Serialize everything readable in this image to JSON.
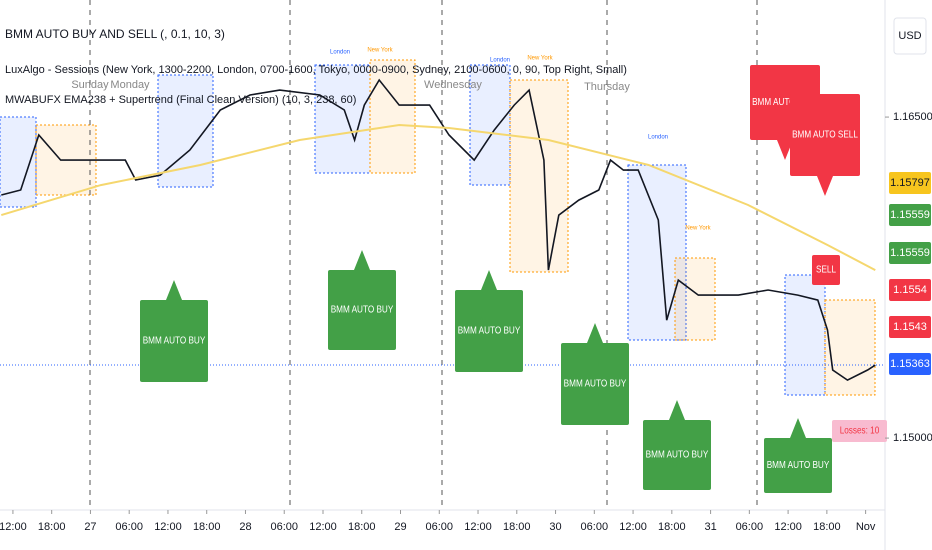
{
  "header": {
    "lines": [
      "BMM AUTO BUY AND SELL (, 0.1, 10, 3)",
      "LuxAlgo - Sessions (New York, 1300-2200, London, 0700-1600, Tokyo, 0000-0900, Sydney, 2100-0600, 0, 90, Top Right, Small)",
      "MWABUFX EMA238 + Supertrend (Final Clean Version) (10, 3, 238, 60)"
    ],
    "currency": "USD"
  },
  "chart_data": {
    "type": "line",
    "series": [
      {
        "color": "#131722",
        "x": [
          -1.8,
          1.2,
          4.0,
          7.4,
          12.0,
          17.4,
          19.0,
          22.8,
          27.4,
          32.1,
          36.7,
          41.3,
          47.5,
          51.3,
          52.9,
          54.4,
          56.7,
          59.8,
          64.5,
          67.5,
          71.4,
          74.5,
          77.6,
          79.9,
          82.2,
          82.9,
          84.5,
          87.6,
          90.7,
          92.5,
          94.5,
          96.8,
          99.9,
          101.2,
          103.0,
          106.1,
          112.3,
          116.9,
          121.5,
          124.6,
          126.1,
          126.9,
          129.2,
          132.3,
          133.5
        ],
        "values": [
          1.16136,
          1.16159,
          1.16416,
          1.16299,
          1.16299,
          1.16299,
          1.16206,
          1.16229,
          1.16346,
          1.16533,
          1.16603,
          1.16626,
          1.16603,
          1.16533,
          1.16393,
          1.16556,
          1.16673,
          1.16556,
          1.16556,
          1.16416,
          1.16299,
          1.16439,
          1.16556,
          1.16626,
          1.16299,
          1.15785,
          1.16042,
          1.16112,
          1.16159,
          1.16299,
          1.16252,
          1.16252,
          1.16019,
          1.15551,
          1.15738,
          1.15668,
          1.15668,
          1.15692,
          1.15668,
          1.15645,
          1.15505,
          1.15318,
          1.15271,
          1.15318,
          1.15341
        ]
      },
      {
        "color": "#f5d76e",
        "x": [
          -1.8,
          13.6,
          29.0,
          44.4,
          59.8,
          67.5,
          82.9,
          98.4,
          113.8,
          126.1,
          133.5
        ],
        "values": [
          1.16042,
          1.16182,
          1.16276,
          1.16393,
          1.16463,
          1.16449,
          1.16393,
          1.16276,
          1.16089,
          1.15902,
          1.15785
        ]
      }
    ],
    "xlim": [
      -2,
      135
    ],
    "ylim": [
      1.14664,
      1.17047
    ],
    "yticks": [
      {
        "value": 1.165,
        "label": "1.16500"
      },
      {
        "value": 1.15,
        "label": "1.15000"
      }
    ],
    "xticks": [
      {
        "value": 0,
        "label": "12:00"
      },
      {
        "value": 6,
        "label": "18:00"
      },
      {
        "value": 12,
        "label": "27"
      },
      {
        "value": 18,
        "label": "06:00"
      },
      {
        "value": 24,
        "label": "12:00"
      },
      {
        "value": 30,
        "label": "18:00"
      },
      {
        "value": 36,
        "label": "28"
      },
      {
        "value": 42,
        "label": "06:00"
      },
      {
        "value": 48,
        "label": "12:00"
      },
      {
        "value": 54,
        "label": "18:00"
      },
      {
        "value": 60,
        "label": "29"
      },
      {
        "value": 66,
        "label": "06:00"
      },
      {
        "value": 72,
        "label": "12:00"
      },
      {
        "value": 78,
        "label": "18:00"
      },
      {
        "value": 84,
        "label": "30"
      },
      {
        "value": 90,
        "label": "06:00"
      },
      {
        "value": 96,
        "label": "12:00"
      },
      {
        "value": 102,
        "label": "18:00"
      },
      {
        "value": 108,
        "label": "31"
      },
      {
        "value": 114,
        "label": "06:00"
      },
      {
        "value": 120,
        "label": "12:00"
      },
      {
        "value": 126,
        "label": "18:00"
      },
      {
        "value": 132,
        "label": "Nov"
      }
    ],
    "price_badges": [
      {
        "value": 1.15797,
        "color": "#f7c51e"
      },
      {
        "value": 1.15559,
        "color": "#43a047"
      },
      {
        "value": 1.15559,
        "color": "#43a047"
      },
      {
        "value": 1.1554,
        "color": "#f23645"
      },
      {
        "value": 1.1543,
        "color": "#f23645"
      },
      {
        "value": 1.15363,
        "color": "#2962ff"
      }
    ],
    "annotations": [
      "BMM AUTO BUY",
      "BMM AUTO BUY",
      "BMM AUTO BUY",
      "BMM AUTO BUY",
      "BMM AUTO BUY",
      "BMM AUTO BUY",
      "BMM AUTO SELL",
      "BMM AUTO SELL",
      "SELL",
      "Losses: 10"
    ],
    "day_labels": [
      "Sunday",
      "Monday",
      "Wednesday",
      "Thursday"
    ],
    "session_labels": [
      "London",
      "New York",
      "London",
      "New York",
      "London",
      "New York"
    ]
  }
}
